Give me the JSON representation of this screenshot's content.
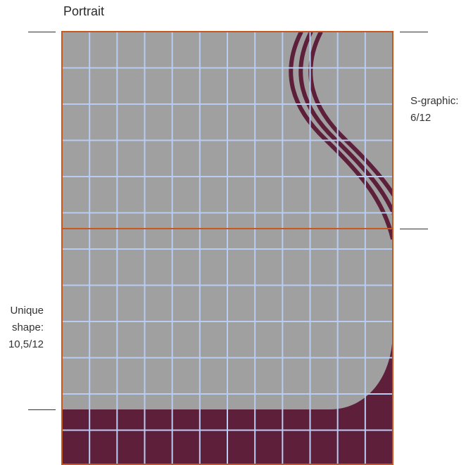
{
  "title": "Portrait",
  "s_graphic": {
    "label_line1": "S-graphic:",
    "label_line2": "6/12"
  },
  "unique_shape": {
    "label_line1": "Unique",
    "label_line2": "shape:",
    "label_line3": "10,5/12"
  },
  "colors": {
    "background": "#a0a0a0",
    "grid_lines": "#b9cdf3",
    "frame_border": "#c8581e",
    "maroon": "#5e1f3b",
    "label_ticks": "#333333"
  },
  "grid": {
    "columns": 12,
    "rows": 12
  }
}
